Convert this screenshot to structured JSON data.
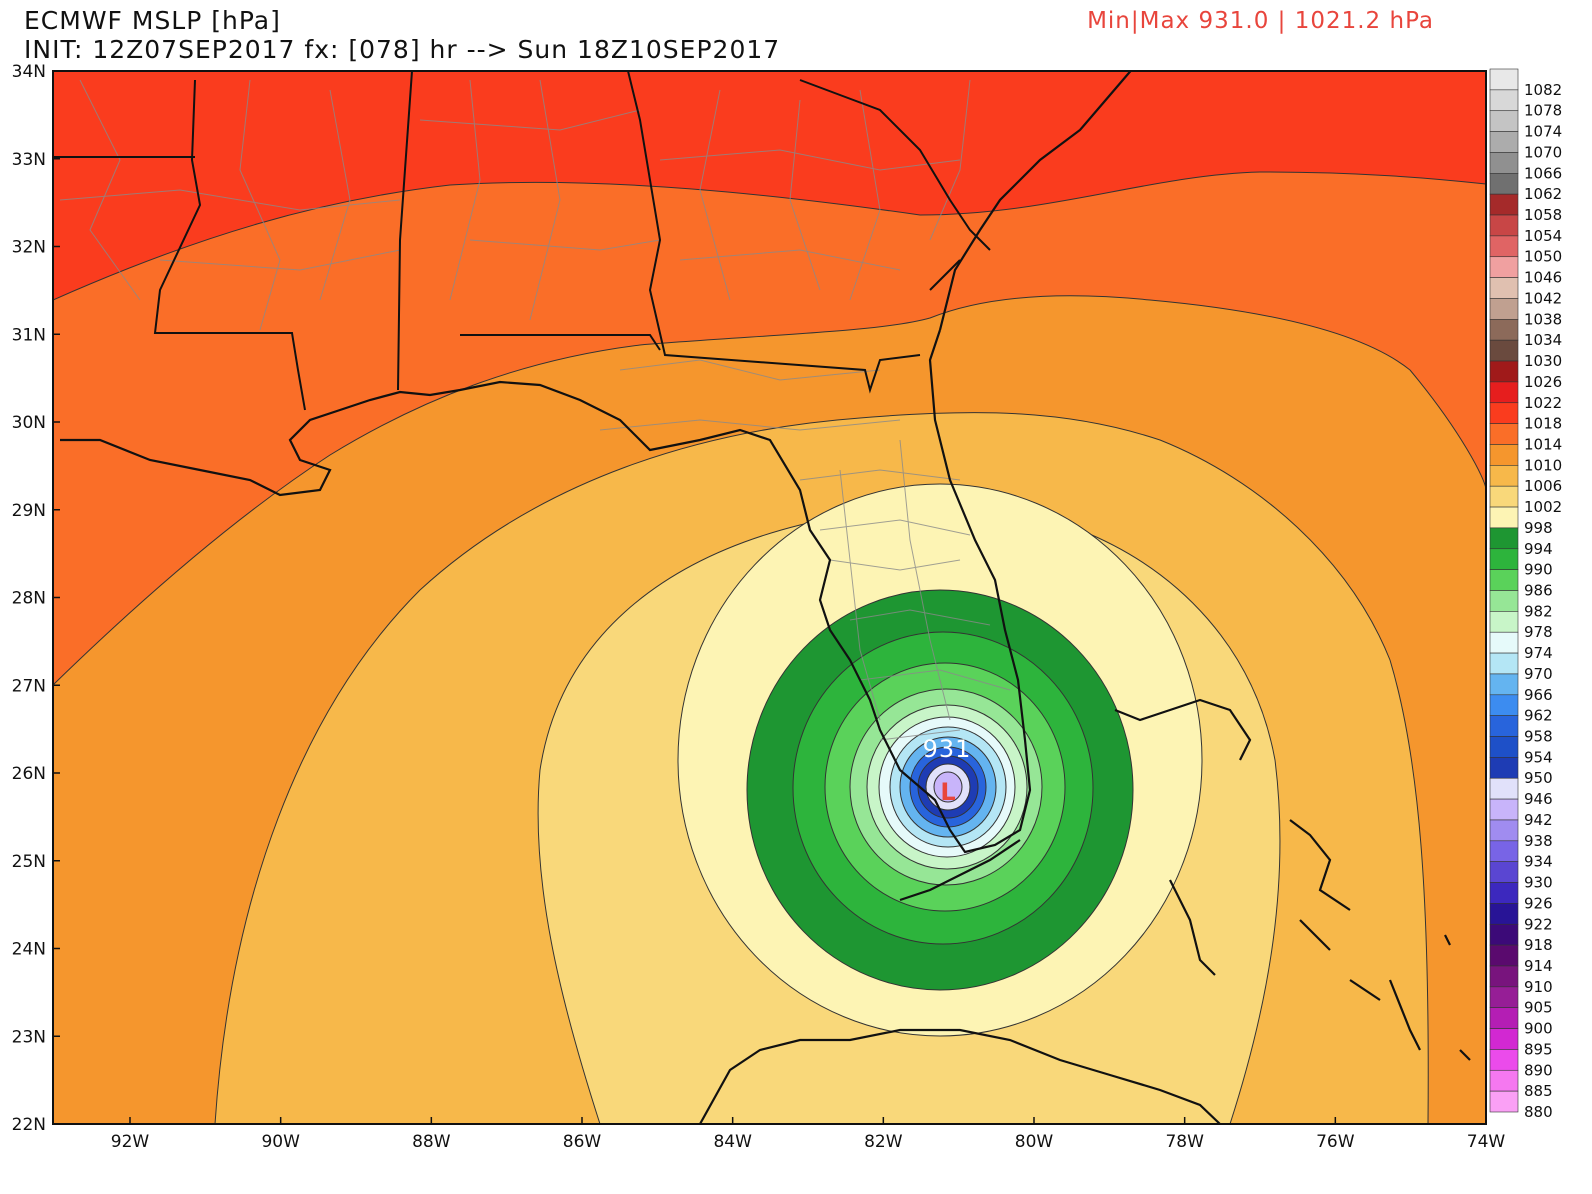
{
  "header": {
    "title": "ECMWF MSLP [hPa]",
    "init_line": "INIT: 12Z07SEP2017 fx: [078] hr --> Sun 18Z10SEP2017",
    "minmax": "Min|Max 931.0 | 1021.2 hPa"
  },
  "map": {
    "lat_labels": [
      "34N",
      "33N",
      "32N",
      "31N",
      "30N",
      "29N",
      "28N",
      "27N",
      "26N",
      "25N",
      "24N",
      "23N",
      "22N"
    ],
    "lon_labels": [
      "92W",
      "90W",
      "88W",
      "86W",
      "84W",
      "82W",
      "80W",
      "78W",
      "76W",
      "74W"
    ],
    "center_label": "931",
    "low_symbol": "L",
    "low_center": {
      "lon": -81.1,
      "lat": 25.8
    },
    "min_pressure_hpa": 931.0,
    "max_pressure_hpa": 1021.2
  },
  "colorbar": {
    "levels": [
      {
        "label": "1082",
        "color": "#e8e8e8"
      },
      {
        "label": "1078",
        "color": "#d8d8d8"
      },
      {
        "label": "1074",
        "color": "#c4c4c4"
      },
      {
        "label": "1070",
        "color": "#acacac"
      },
      {
        "label": "1066",
        "color": "#909090"
      },
      {
        "label": "1062",
        "color": "#707070"
      },
      {
        "label": "1058",
        "color": "#a52a2a"
      },
      {
        "label": "1054",
        "color": "#c84646"
      },
      {
        "label": "1050",
        "color": "#e06464"
      },
      {
        "label": "1046",
        "color": "#f0a0a0"
      },
      {
        "label": "1042",
        "color": "#e0c0b0"
      },
      {
        "label": "1038",
        "color": "#c0a090"
      },
      {
        "label": "1034",
        "color": "#8c6a5a"
      },
      {
        "label": "1030",
        "color": "#6a4a3e"
      },
      {
        "label": "1026",
        "color": "#a01a1a"
      },
      {
        "label": "1022",
        "color": "#e61e1e"
      },
      {
        "label": "1018",
        "color": "#fa3c1e"
      },
      {
        "label": "1014",
        "color": "#fa6e28"
      },
      {
        "label": "1010",
        "color": "#f5962d"
      },
      {
        "label": "1006",
        "color": "#f7b84a"
      },
      {
        "label": "1002",
        "color": "#f9d87a"
      },
      {
        "label": "998",
        "color": "#fdf4b4"
      },
      {
        "label": "994",
        "color": "#1e9632"
      },
      {
        "label": "990",
        "color": "#2db43c"
      },
      {
        "label": "986",
        "color": "#5ad25a"
      },
      {
        "label": "982",
        "color": "#96e696"
      },
      {
        "label": "978",
        "color": "#c8f5c8"
      },
      {
        "label": "974",
        "color": "#e6fafa"
      },
      {
        "label": "970",
        "color": "#b4e6f5"
      },
      {
        "label": "966",
        "color": "#64b4f0"
      },
      {
        "label": "962",
        "color": "#3c8cf0"
      },
      {
        "label": "958",
        "color": "#2864dc"
      },
      {
        "label": "954",
        "color": "#1e50c8"
      },
      {
        "label": "950",
        "color": "#1e3cb4"
      },
      {
        "label": "946",
        "color": "#e1e1fa"
      },
      {
        "label": "942",
        "color": "#c8b4fa"
      },
      {
        "label": "938",
        "color": "#a08cf0"
      },
      {
        "label": "934",
        "color": "#7864e6"
      },
      {
        "label": "930",
        "color": "#5a46d2"
      },
      {
        "label": "926",
        "color": "#3c28be"
      },
      {
        "label": "922",
        "color": "#281496"
      },
      {
        "label": "918",
        "color": "#3c0a78"
      },
      {
        "label": "914",
        "color": "#5a0a6e"
      },
      {
        "label": "910",
        "color": "#78147d"
      },
      {
        "label": "905",
        "color": "#961e96"
      },
      {
        "label": "900",
        "color": "#b41eb4"
      },
      {
        "label": "895",
        "color": "#d228d2"
      },
      {
        "label": "890",
        "color": "#eb4beb"
      },
      {
        "label": "885",
        "color": "#f578f0"
      },
      {
        "label": "880",
        "color": "#faa0f5"
      }
    ]
  }
}
